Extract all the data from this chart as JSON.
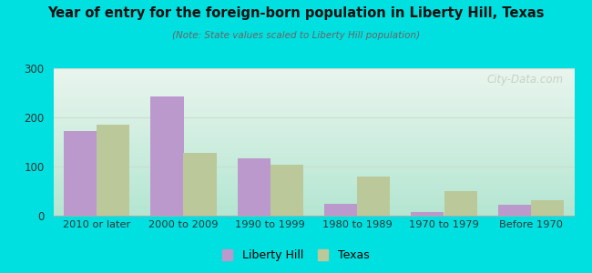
{
  "title": "Year of entry for the foreign-born population in Liberty Hill, Texas",
  "subtitle": "(Note: State values scaled to Liberty Hill population)",
  "categories": [
    "2010 or later",
    "2000 to 2009",
    "1990 to 1999",
    "1980 to 1989",
    "1970 to 1979",
    "Before 1970"
  ],
  "liberty_hill": [
    172,
    243,
    116,
    25,
    8,
    22
  ],
  "texas": [
    185,
    128,
    104,
    80,
    50,
    32
  ],
  "liberty_hill_color": "#bb99cc",
  "texas_color": "#bbc899",
  "ylim": [
    0,
    300
  ],
  "yticks": [
    0,
    100,
    200,
    300
  ],
  "bg_color": "#00e0e0",
  "plot_bg_top": "#eaf5ee",
  "plot_bg_bottom": "#c8e8d8",
  "bar_width": 0.38,
  "watermark": "City-Data.com",
  "legend_labels": [
    "Liberty Hill",
    "Texas"
  ],
  "grid_color": "#ccddcc",
  "spine_color": "#aaaaaa"
}
